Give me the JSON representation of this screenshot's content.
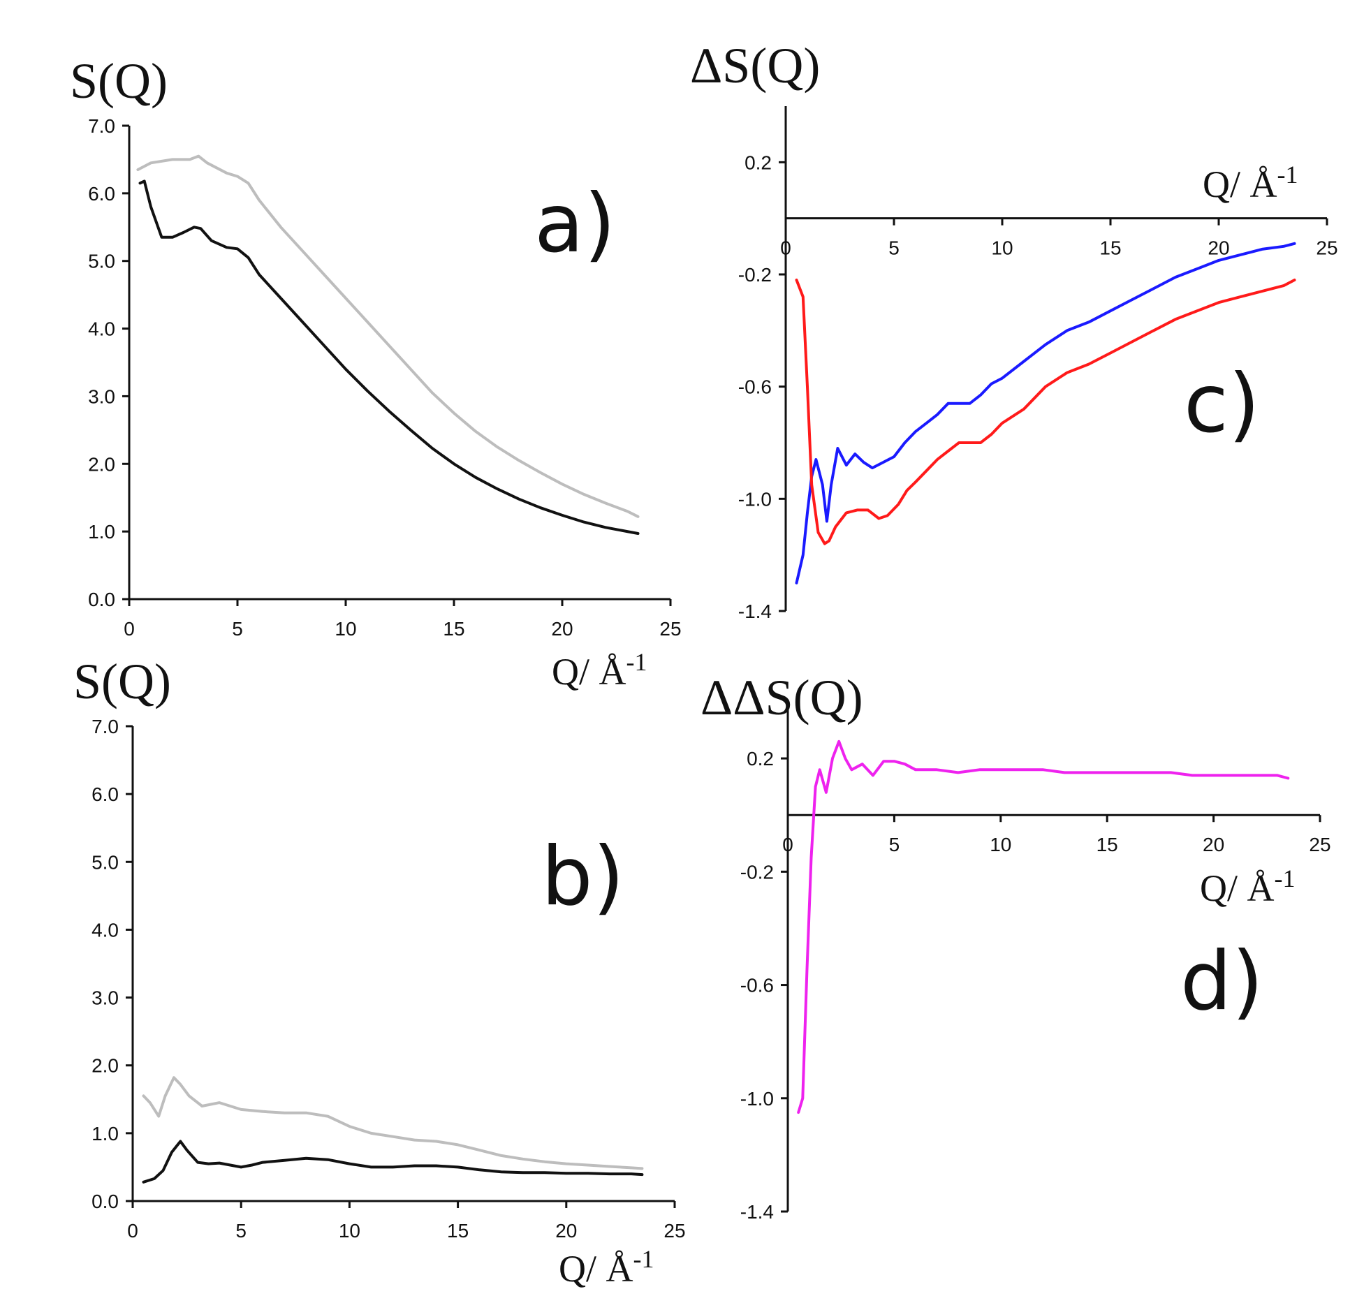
{
  "chart_data": [
    {
      "id": "a",
      "type": "line",
      "panel_label": "a)",
      "ylabel": "S(Q)",
      "xlabel": "Q/ Å",
      "xlabel_exp": "-1",
      "xlim": [
        0,
        25
      ],
      "ylim": [
        0,
        7
      ],
      "xticks": [
        "0",
        "5",
        "10",
        "15",
        "20",
        "25"
      ],
      "yticks": [
        "0.0",
        "1.0",
        "2.0",
        "3.0",
        "4.0",
        "5.0",
        "6.0",
        "7.0"
      ],
      "series": [
        {
          "name": "gray",
          "color": "#bdbdbd",
          "x": [
            0.4,
            1.0,
            2.0,
            2.8,
            3.2,
            3.6,
            4.5,
            5.0,
            5.5,
            6.0,
            7.0,
            8.0,
            9.0,
            10.0,
            11.0,
            12.0,
            13.0,
            14.0,
            15.0,
            16.0,
            17.0,
            18.0,
            19.0,
            20.0,
            21.0,
            22.0,
            23.0,
            23.5
          ],
          "y": [
            6.35,
            6.45,
            6.5,
            6.5,
            6.55,
            6.45,
            6.3,
            6.25,
            6.15,
            5.9,
            5.5,
            5.15,
            4.8,
            4.45,
            4.1,
            3.75,
            3.4,
            3.05,
            2.75,
            2.48,
            2.25,
            2.05,
            1.87,
            1.7,
            1.55,
            1.42,
            1.3,
            1.22
          ]
        },
        {
          "name": "black",
          "color": "#111111",
          "x": [
            0.5,
            0.7,
            1.0,
            1.5,
            2.0,
            2.5,
            3.0,
            3.3,
            3.8,
            4.5,
            5.0,
            5.5,
            6.0,
            7.0,
            8.0,
            9.0,
            10.0,
            11.0,
            12.0,
            13.0,
            14.0,
            15.0,
            16.0,
            17.0,
            18.0,
            19.0,
            20.0,
            21.0,
            22.0,
            23.0,
            23.5
          ],
          "y": [
            6.15,
            6.18,
            5.8,
            5.35,
            5.35,
            5.42,
            5.5,
            5.48,
            5.3,
            5.2,
            5.18,
            5.05,
            4.8,
            4.45,
            4.1,
            3.75,
            3.4,
            3.08,
            2.78,
            2.5,
            2.23,
            2.0,
            1.8,
            1.63,
            1.48,
            1.35,
            1.24,
            1.14,
            1.06,
            1.0,
            0.97
          ]
        }
      ]
    },
    {
      "id": "b",
      "type": "line",
      "panel_label": "b)",
      "ylabel": "S(Q)",
      "xlabel": "Q/ Å",
      "xlabel_exp": "-1",
      "xlim": [
        0,
        25
      ],
      "ylim": [
        0,
        7
      ],
      "xticks": [
        "0",
        "5",
        "10",
        "15",
        "20",
        "25"
      ],
      "yticks": [
        "0.0",
        "1.0",
        "2.0",
        "3.0",
        "4.0",
        "5.0",
        "6.0",
        "7.0"
      ],
      "series": [
        {
          "name": "gray",
          "color": "#bdbdbd",
          "x": [
            0.5,
            0.8,
            1.2,
            1.5,
            1.9,
            2.2,
            2.6,
            3.2,
            4.0,
            5.0,
            6.0,
            7.0,
            8.0,
            9.0,
            10.0,
            11.0,
            12.0,
            13.0,
            14.0,
            15.0,
            16.0,
            17.0,
            18.0,
            19.0,
            20.0,
            21.0,
            22.0,
            23.0,
            23.5
          ],
          "y": [
            1.55,
            1.45,
            1.25,
            1.55,
            1.82,
            1.72,
            1.55,
            1.4,
            1.45,
            1.35,
            1.32,
            1.3,
            1.3,
            1.25,
            1.1,
            1.0,
            0.95,
            0.9,
            0.88,
            0.83,
            0.75,
            0.67,
            0.62,
            0.58,
            0.55,
            0.53,
            0.51,
            0.49,
            0.48
          ]
        },
        {
          "name": "black",
          "color": "#111111",
          "x": [
            0.5,
            1.0,
            1.4,
            1.8,
            2.2,
            2.5,
            3.0,
            3.5,
            4.0,
            4.5,
            5.0,
            5.5,
            6.0,
            7.0,
            8.0,
            9.0,
            10.0,
            11.0,
            12.0,
            13.0,
            14.0,
            15.0,
            16.0,
            17.0,
            18.0,
            19.0,
            20.0,
            21.0,
            22.0,
            23.0,
            23.5
          ],
          "y": [
            0.28,
            0.33,
            0.45,
            0.72,
            0.88,
            0.75,
            0.57,
            0.55,
            0.56,
            0.53,
            0.5,
            0.53,
            0.57,
            0.6,
            0.63,
            0.61,
            0.55,
            0.5,
            0.5,
            0.52,
            0.52,
            0.5,
            0.46,
            0.43,
            0.42,
            0.42,
            0.41,
            0.41,
            0.4,
            0.4,
            0.39
          ]
        }
      ]
    },
    {
      "id": "c",
      "type": "line",
      "panel_label": "c)",
      "ylabel": "ΔS(Q)",
      "xlabel": "Q/ Å",
      "xlabel_exp": "-1",
      "xlim": [
        0,
        25
      ],
      "ylim": [
        -1.4,
        0.4
      ],
      "xticks": [
        "0",
        "5",
        "10",
        "15",
        "20",
        "25"
      ],
      "yticks": [
        "-1.4",
        "-1.0",
        "-0.6",
        "-0.2",
        "0.2"
      ],
      "series": [
        {
          "name": "blue",
          "color": "#1a1aff",
          "x": [
            0.5,
            0.8,
            1.0,
            1.2,
            1.4,
            1.7,
            1.9,
            2.1,
            2.4,
            2.8,
            3.2,
            3.6,
            4.0,
            4.5,
            5.0,
            5.5,
            6.0,
            6.5,
            7.0,
            7.5,
            8.0,
            8.5,
            9.0,
            9.5,
            10.0,
            11.0,
            12.0,
            13.0,
            14.0,
            15.0,
            16.0,
            17.0,
            18.0,
            19.0,
            20.0,
            21.0,
            22.0,
            23.0,
            23.5
          ],
          "y": [
            -1.3,
            -1.2,
            -1.05,
            -0.92,
            -0.86,
            -0.95,
            -1.08,
            -0.95,
            -0.82,
            -0.88,
            -0.84,
            -0.87,
            -0.89,
            -0.87,
            -0.85,
            -0.8,
            -0.76,
            -0.73,
            -0.7,
            -0.66,
            -0.66,
            -0.66,
            -0.63,
            -0.59,
            -0.57,
            -0.51,
            -0.45,
            -0.4,
            -0.37,
            -0.33,
            -0.29,
            -0.25,
            -0.21,
            -0.18,
            -0.15,
            -0.13,
            -0.11,
            -0.1,
            -0.09
          ]
        },
        {
          "name": "red",
          "color": "#ff1a1a",
          "x": [
            0.5,
            0.8,
            1.0,
            1.2,
            1.5,
            1.8,
            2.0,
            2.3,
            2.8,
            3.3,
            3.8,
            4.3,
            4.7,
            5.2,
            5.6,
            6.0,
            6.5,
            7.0,
            7.5,
            8.0,
            8.5,
            9.0,
            9.5,
            10.0,
            11.0,
            12.0,
            13.0,
            14.0,
            15.0,
            16.0,
            17.0,
            18.0,
            19.0,
            20.0,
            21.0,
            22.0,
            23.0,
            23.5
          ],
          "y": [
            -0.22,
            -0.28,
            -0.6,
            -0.95,
            -1.12,
            -1.16,
            -1.15,
            -1.1,
            -1.05,
            -1.04,
            -1.04,
            -1.07,
            -1.06,
            -1.02,
            -0.97,
            -0.94,
            -0.9,
            -0.86,
            -0.83,
            -0.8,
            -0.8,
            -0.8,
            -0.77,
            -0.73,
            -0.68,
            -0.6,
            -0.55,
            -0.52,
            -0.48,
            -0.44,
            -0.4,
            -0.36,
            -0.33,
            -0.3,
            -0.28,
            -0.26,
            -0.24,
            -0.22
          ]
        }
      ]
    },
    {
      "id": "d",
      "type": "line",
      "panel_label": "d)",
      "ylabel": "ΔΔS(Q)",
      "xlabel": "Q/ Å",
      "xlabel_exp": "-1",
      "xlim": [
        0,
        25
      ],
      "ylim": [
        -1.4,
        0.4
      ],
      "xticks": [
        "0",
        "5",
        "10",
        "15",
        "20",
        "25"
      ],
      "yticks": [
        "-1.4",
        "-1.0",
        "-0.6",
        "-0.2",
        "0.2"
      ],
      "series": [
        {
          "name": "magenta",
          "color": "#ee22ee",
          "x": [
            0.5,
            0.7,
            0.9,
            1.1,
            1.3,
            1.5,
            1.8,
            2.1,
            2.4,
            2.7,
            3.0,
            3.5,
            4.0,
            4.5,
            5.0,
            5.5,
            6.0,
            7.0,
            8.0,
            9.0,
            10.0,
            11.0,
            12.0,
            13.0,
            14.0,
            15.0,
            16.0,
            17.0,
            18.0,
            19.0,
            20.0,
            21.0,
            22.0,
            23.0,
            23.5
          ],
          "y": [
            -1.05,
            -1.0,
            -0.55,
            -0.15,
            0.1,
            0.16,
            0.08,
            0.2,
            0.26,
            0.2,
            0.16,
            0.18,
            0.14,
            0.19,
            0.19,
            0.18,
            0.16,
            0.16,
            0.15,
            0.16,
            0.16,
            0.16,
            0.16,
            0.15,
            0.15,
            0.15,
            0.15,
            0.15,
            0.15,
            0.14,
            0.14,
            0.14,
            0.14,
            0.14,
            0.13
          ]
        }
      ]
    }
  ]
}
